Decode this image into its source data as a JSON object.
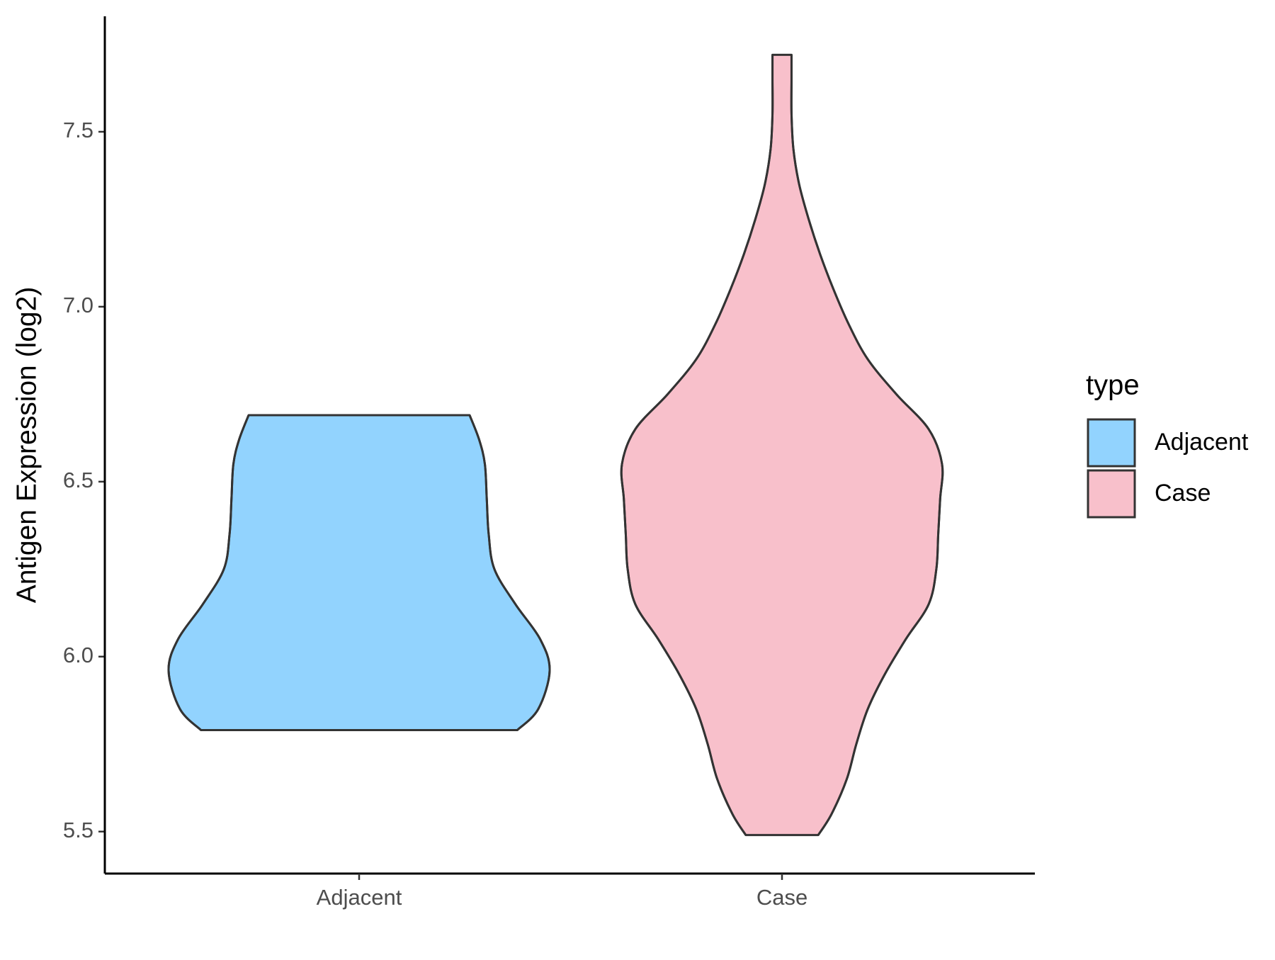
{
  "chart_data": {
    "type": "violin",
    "y_label": "Antigen Expression (log2)",
    "categories": [
      "Adjacent",
      "Case"
    ],
    "ylim": [
      5.38,
      7.83
    ],
    "yticks": [
      5.5,
      {
        "value": 6,
        "label": "6.0"
      },
      6.5,
      {
        "value": 7,
        "label": "7.0"
      },
      7.5
    ],
    "legend_title": "type",
    "legend_position": "right",
    "series": [
      {
        "name": "Adjacent",
        "color": "#92D3FE",
        "y": [
          5.79,
          5.85,
          5.96,
          6.05,
          6.15,
          6.25,
          6.35,
          6.45,
          6.55,
          6.62,
          6.69
        ],
        "width": [
          0.83,
          0.94,
          1.0,
          0.95,
          0.82,
          0.71,
          0.68,
          0.67,
          0.66,
          0.63,
          0.58
        ]
      },
      {
        "name": "Case",
        "color": "#F8C0CB",
        "y": [
          5.49,
          5.55,
          5.65,
          5.75,
          5.85,
          5.95,
          6.05,
          6.15,
          6.25,
          6.35,
          6.45,
          6.55,
          6.65,
          6.75,
          6.85,
          6.95,
          7.05,
          7.15,
          7.25,
          7.35,
          7.45,
          7.55,
          7.65,
          7.72
        ],
        "width": [
          0.19,
          0.26,
          0.34,
          0.39,
          0.45,
          0.54,
          0.65,
          0.77,
          0.81,
          0.82,
          0.83,
          0.84,
          0.77,
          0.6,
          0.45,
          0.35,
          0.27,
          0.2,
          0.14,
          0.09,
          0.06,
          0.05,
          0.05,
          0.05
        ]
      }
    ]
  }
}
